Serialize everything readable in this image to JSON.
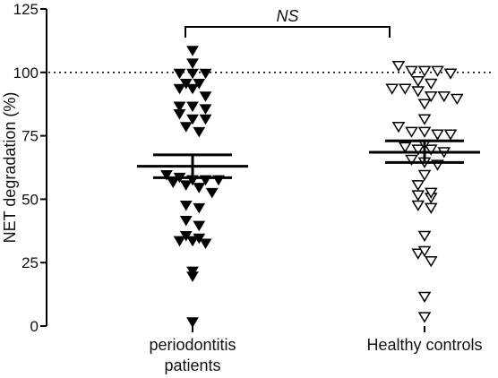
{
  "chart_data": {
    "type": "scatter",
    "ylabel": "NET degradation (%)",
    "ylim": [
      0,
      125
    ],
    "yticks": [
      "0",
      "25",
      "50",
      "75",
      "100",
      "125"
    ],
    "ytick_values": [
      0,
      25,
      50,
      75,
      100,
      125
    ],
    "reference_line": 100,
    "categories": [
      {
        "lines": [
          "periodontitis",
          "patients"
        ]
      },
      {
        "lines": [
          "Healthy controls"
        ]
      }
    ],
    "annotation": "NS",
    "series": [
      {
        "marker": "filled-down-triangle",
        "values": [
          109,
          104,
          100,
          100,
          100,
          96,
          96,
          94,
          94,
          91,
          87,
          87,
          86,
          84,
          82,
          82,
          79,
          77,
          60,
          59,
          58,
          58,
          58,
          57,
          56,
          55,
          53,
          48,
          47,
          42,
          40,
          36,
          35,
          34,
          34,
          33,
          22,
          20,
          2
        ],
        "mean": 63,
        "sem": [
          58.5,
          67.5
        ]
      },
      {
        "marker": "open-down-triangle",
        "values": [
          103,
          101,
          101,
          101,
          100,
          97,
          96,
          94,
          94,
          93,
          91,
          91,
          90,
          88,
          82,
          79,
          77,
          77,
          76,
          76,
          72,
          71,
          70,
          70,
          69,
          66,
          65,
          64,
          60,
          56,
          53,
          52,
          51,
          48,
          47,
          36,
          30,
          29,
          26,
          12,
          4
        ],
        "mean": 68.5,
        "sem": [
          64.5,
          73
        ]
      }
    ]
  }
}
